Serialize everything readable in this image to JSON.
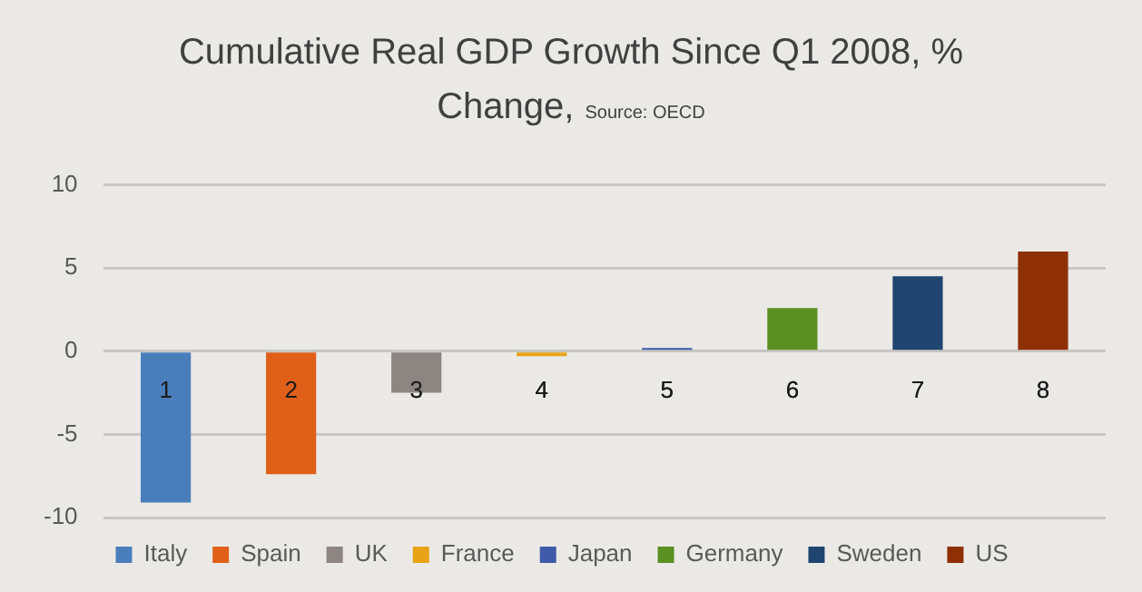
{
  "chart_data": {
    "type": "bar",
    "title": "Cumulative Real GDP Growth Since Q1 2008, % Change,",
    "annotations": [
      "Source: OECD"
    ],
    "categories": [
      "1",
      "2",
      "3",
      "4",
      "5",
      "6",
      "7",
      "8"
    ],
    "series": [
      {
        "name": "Italy",
        "color": "#4a7ebb",
        "values": [
          -9.1,
          null,
          null,
          null,
          null,
          null,
          null,
          null
        ]
      },
      {
        "name": "Spain",
        "color": "#e0601a",
        "values": [
          null,
          -7.4,
          null,
          null,
          null,
          null,
          null,
          null
        ]
      },
      {
        "name": "UK",
        "color": "#8c8582",
        "values": [
          null,
          null,
          -2.5,
          null,
          null,
          null,
          null,
          null
        ]
      },
      {
        "name": "France",
        "color": "#e8a317",
        "values": [
          null,
          null,
          null,
          -0.3,
          null,
          null,
          null,
          null
        ]
      },
      {
        "name": "Japan",
        "color": "#3f5aa8",
        "values": [
          null,
          null,
          null,
          null,
          0.2,
          null,
          null,
          null
        ]
      },
      {
        "name": "Germany",
        "color": "#5b8f22",
        "values": [
          null,
          null,
          null,
          null,
          null,
          2.6,
          null,
          null
        ]
      },
      {
        "name": "Sweden",
        "color": "#1f4570",
        "values": [
          null,
          null,
          null,
          null,
          null,
          null,
          4.5,
          null
        ]
      },
      {
        "name": "US",
        "color": "#8f3004",
        "values": [
          null,
          null,
          null,
          null,
          null,
          null,
          null,
          6.0
        ]
      }
    ],
    "ylim": [
      -10,
      10
    ],
    "yticks": [
      -10,
      -5,
      0,
      5,
      10
    ],
    "grid": "y",
    "legend": "bottom"
  }
}
